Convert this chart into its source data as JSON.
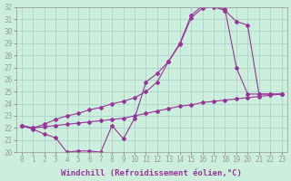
{
  "xlabel": "Windchill (Refroidissement éolien,°C)",
  "xlim": [
    -0.5,
    23.5
  ],
  "ylim": [
    20,
    32
  ],
  "yticks": [
    20,
    21,
    22,
    23,
    24,
    25,
    26,
    27,
    28,
    29,
    30,
    31,
    32
  ],
  "xticks": [
    0,
    1,
    2,
    3,
    4,
    5,
    6,
    7,
    8,
    9,
    10,
    11,
    12,
    13,
    14,
    15,
    16,
    17,
    18,
    19,
    20,
    21,
    22,
    23
  ],
  "bg_color": "#cceedd",
  "line_color": "#993399",
  "line1_x": [
    0,
    1,
    2,
    3,
    4,
    5,
    6,
    7,
    8,
    9,
    10,
    11,
    12,
    13,
    14,
    15,
    16,
    17,
    18,
    19,
    20,
    21,
    22,
    23
  ],
  "line1_y": [
    22.2,
    21.9,
    21.5,
    21.2,
    20.0,
    20.1,
    20.1,
    20.0,
    22.2,
    21.1,
    22.8,
    25.8,
    26.5,
    27.5,
    29.0,
    31.3,
    32.1,
    32.1,
    31.8,
    27.0,
    24.8,
    24.8,
    24.8,
    24.8
  ],
  "line2_x": [
    0,
    1,
    2,
    3,
    4,
    5,
    6,
    7,
    8,
    9,
    10,
    11,
    12,
    13,
    14,
    15,
    16,
    17,
    18,
    19,
    20,
    21,
    22,
    23
  ],
  "line2_y": [
    22.2,
    22.0,
    22.3,
    22.7,
    23.0,
    23.2,
    23.5,
    23.7,
    24.0,
    24.2,
    24.5,
    25.0,
    25.8,
    27.5,
    28.9,
    31.1,
    31.9,
    32.0,
    31.7,
    30.8,
    30.5,
    24.8,
    24.8,
    24.8
  ],
  "line3_x": [
    0,
    1,
    2,
    3,
    4,
    5,
    6,
    7,
    8,
    9,
    10,
    11,
    12,
    13,
    14,
    15,
    16,
    17,
    18,
    19,
    20,
    21,
    22,
    23
  ],
  "line3_y": [
    22.2,
    22.0,
    22.1,
    22.2,
    22.3,
    22.4,
    22.5,
    22.6,
    22.7,
    22.8,
    23.0,
    23.2,
    23.4,
    23.6,
    23.8,
    23.9,
    24.1,
    24.2,
    24.3,
    24.4,
    24.5,
    24.6,
    24.7,
    24.8
  ],
  "marker": "D",
  "markersize": 2.0,
  "linewidth": 0.8,
  "xlabel_fontsize": 6.5,
  "tick_fontsize": 5.5,
  "grid_color": "#aacccc"
}
